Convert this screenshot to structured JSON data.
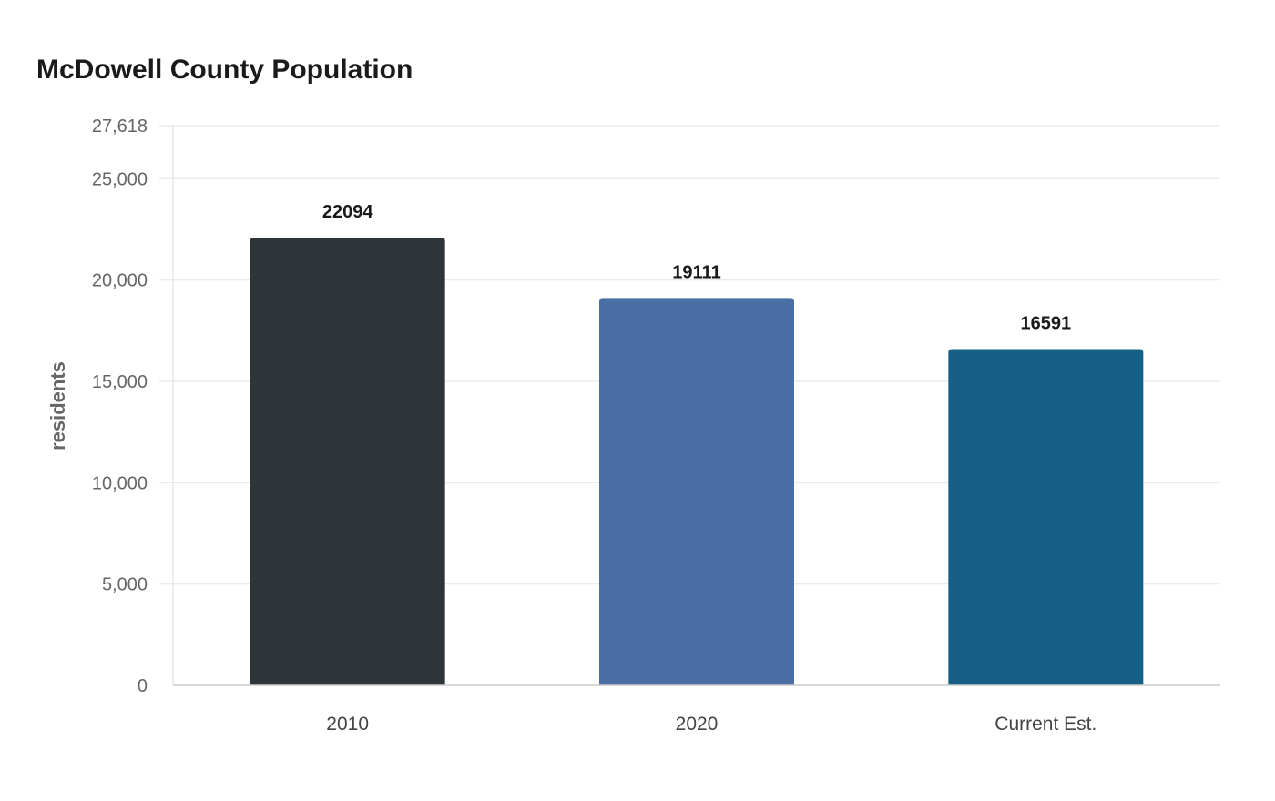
{
  "chart_data": {
    "type": "bar",
    "title": "McDowell County Population",
    "ylabel": "residents",
    "xlabel": "",
    "categories": [
      "2010",
      "2020",
      "Current Est."
    ],
    "values": [
      22094,
      19111,
      16591
    ],
    "colors": [
      "#2e3538",
      "#4a6fa5",
      "#166088"
    ],
    "ylim": [
      0,
      27618
    ],
    "yticks": [
      0,
      5000,
      10000,
      15000,
      20000,
      25000,
      27618
    ],
    "ytick_labels": [
      "0",
      "5,000",
      "10,000",
      "15,000",
      "20,000",
      "25,000",
      "27,618"
    ],
    "grid": true,
    "legend": "none"
  }
}
